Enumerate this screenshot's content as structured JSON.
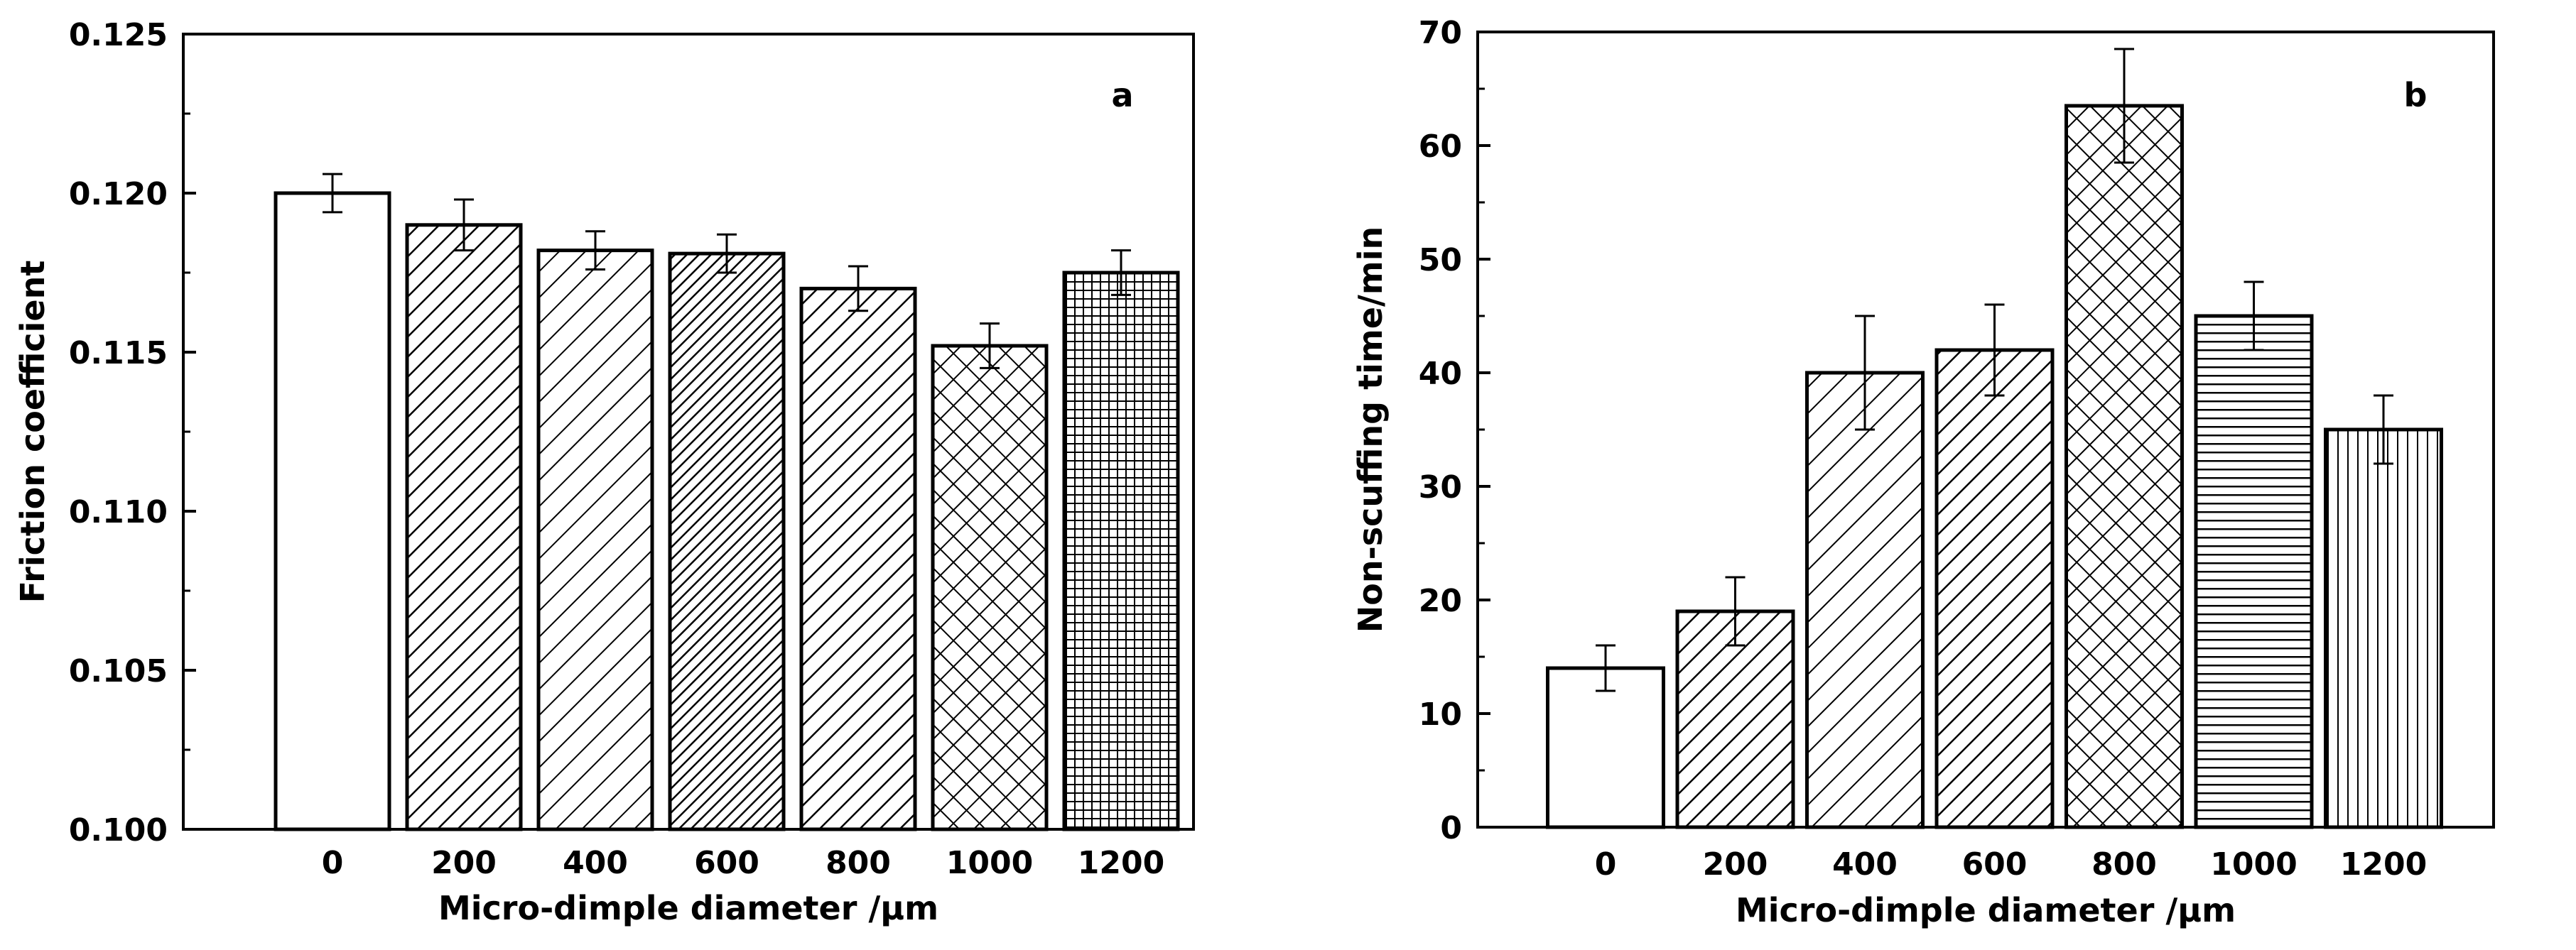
{
  "chart_data": [
    {
      "type": "bar",
      "panel_label": "a",
      "categories": [
        "0",
        "200",
        "400",
        "600",
        "800",
        "1000",
        "1200"
      ],
      "values": [
        0.12,
        0.119,
        0.1182,
        0.1181,
        0.117,
        0.1152,
        0.1175
      ],
      "errors": [
        0.0006,
        0.0008,
        0.0006,
        0.0006,
        0.0007,
        0.0007,
        0.0007
      ],
      "patterns": [
        "none",
        "diag-right",
        "diag-right-wide",
        "diag-right-dense",
        "diag-right",
        "crosshatch",
        "grid"
      ],
      "xlabel": "Micro-dimple diameter /μm",
      "ylabel": "Friction coefficient",
      "ylim": [
        0.1,
        0.125
      ],
      "yticks": [
        0.1,
        0.105,
        0.11,
        0.115,
        0.12,
        0.125
      ],
      "ytick_labels": [
        "0.100",
        "0.105",
        "0.110",
        "0.115",
        "0.120",
        "0.125"
      ]
    },
    {
      "type": "bar",
      "panel_label": "b",
      "categories": [
        "0",
        "200",
        "400",
        "600",
        "800",
        "1000",
        "1200"
      ],
      "values": [
        14,
        19,
        40,
        42,
        63.5,
        45,
        35
      ],
      "errors": [
        2,
        3,
        5,
        4,
        5,
        3,
        3
      ],
      "patterns": [
        "none",
        "diag-right",
        "diag-right-wide",
        "diag-right",
        "crosshatch",
        "horizontal",
        "vertical"
      ],
      "xlabel": "Micro-dimple diameter /μm",
      "ylabel": "Non-scuffing time/min",
      "ylim": [
        0,
        70
      ],
      "yticks": [
        0,
        10,
        20,
        30,
        40,
        50,
        60,
        70
      ],
      "ytick_labels": [
        "0",
        "10",
        "20",
        "30",
        "40",
        "50",
        "60",
        "70"
      ]
    }
  ]
}
